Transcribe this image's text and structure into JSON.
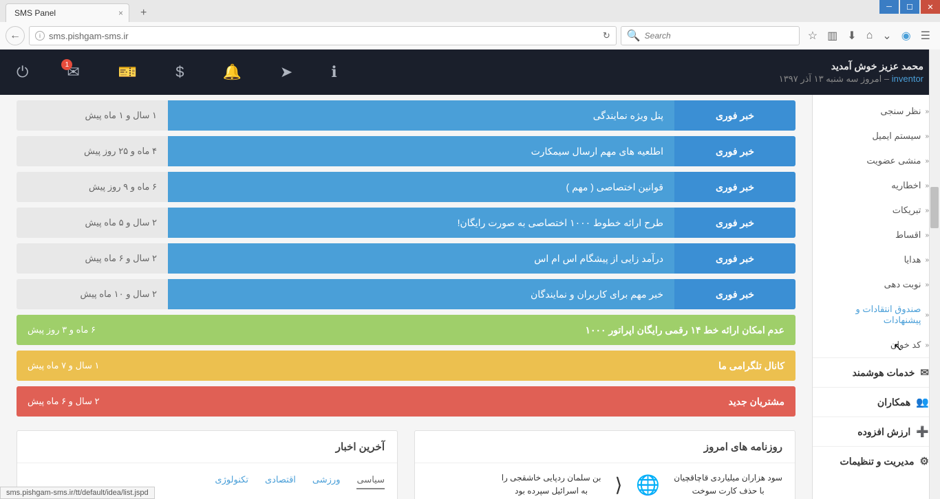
{
  "browser": {
    "tab_title": "SMS Panel",
    "url": "sms.pishgam-sms.ir",
    "search_placeholder": "Search",
    "status_url": "sms.pishgam-sms.ir/tt/default/idea/list.jspd"
  },
  "header": {
    "welcome": "محمد عزیز خوش آمدید",
    "username": "inventor",
    "date_prefix": " – امروز سه شنبه ۱۳ آذر ۱۳۹۷",
    "badge_count": "1"
  },
  "sidebar": {
    "items": [
      {
        "label": "نظر سنجی",
        "active": false
      },
      {
        "label": "سیستم ایمیل",
        "active": false
      },
      {
        "label": "منشی عضویت",
        "active": false
      },
      {
        "label": "اخطاریه",
        "active": false
      },
      {
        "label": "تبریکات",
        "active": false
      },
      {
        "label": "اقساط",
        "active": false
      },
      {
        "label": "هدایا",
        "active": false
      },
      {
        "label": "نوبت دهی",
        "active": false
      },
      {
        "label": "صندوق انتقادات و پیشنهادات",
        "active": true
      },
      {
        "label": "کد خوان",
        "active": false
      }
    ],
    "categories": [
      {
        "label": "خدمات هوشمند",
        "icon": "✉"
      },
      {
        "label": "همکاران",
        "icon": "👥"
      },
      {
        "label": "ارزش افزوده",
        "icon": "➕"
      },
      {
        "label": "مدیریت و تنظیمات",
        "icon": "⚙"
      }
    ]
  },
  "news": {
    "urgent_label": "خبر فوری",
    "rows": [
      {
        "type": "blue",
        "title": "پنل ویژه نمایندگی",
        "time": "۱ سال و ۱ ماه پیش"
      },
      {
        "type": "blue",
        "title": "اطلعیه های مهم ارسال سیمکارت",
        "time": "۴ ماه و ۲۵ روز پیش"
      },
      {
        "type": "blue",
        "title": "قوانین اختصاصی ( مهم )",
        "time": "۶ ماه و ۹ روز پیش"
      },
      {
        "type": "blue",
        "title": "طرح ارائه خطوط ۱۰۰۰ اختصاصی به صورت رایگان!",
        "time": "۲ سال و ۵ ماه پیش"
      },
      {
        "type": "blue",
        "title": "درآمد زایی از پیشگام اس ام اس",
        "time": "۲ سال و ۶ ماه پیش"
      },
      {
        "type": "blue",
        "title": "خبر مهم برای کاربران و نمایندگان",
        "time": "۲ سال و ۱۰ ماه پیش"
      },
      {
        "type": "green",
        "title": "عدم امکان ارائه خط ۱۴ رقمی رایگان اپراتور ۱۰۰۰",
        "time": "۶ ماه و ۳ روز پیش"
      },
      {
        "type": "yellow",
        "title": "کانال تلگرامی ما",
        "time": "۱ سال و ۷ ماه پیش"
      },
      {
        "type": "red",
        "title": "مشتریان جدید",
        "time": "۲ سال و ۶ ماه پیش"
      }
    ]
  },
  "panels": {
    "newspapers": {
      "title": "روزنامه های امروز",
      "headline1": "بن سلمان ردپایی خاشقجی را",
      "headline1b": "به اسرائیل سپرده بود",
      "headline2": "سود هزاران میلیاردی قاچاقچیان",
      "headline2b": "با حذف کارت سوخت"
    },
    "latest_news": {
      "title": "آخرین اخبار",
      "tabs": [
        "سیاسی",
        "ورزشی",
        "اقتصادی",
        "تکنولوژی"
      ]
    }
  },
  "colors": {
    "header_bg": "#1a1f2b",
    "blue": "#4a9fd8",
    "blue_dark": "#3b8fd4",
    "green": "#9fcf6a",
    "yellow": "#ecc04f",
    "red": "#e06055"
  }
}
